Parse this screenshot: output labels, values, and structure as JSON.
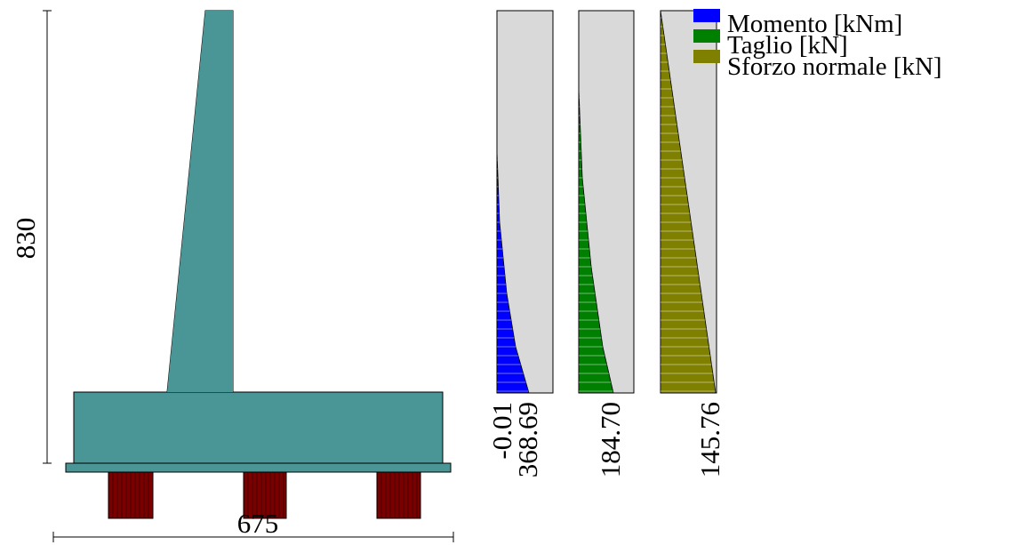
{
  "wall": {
    "height_label": "830",
    "width_label": "675"
  },
  "diagrams": [
    {
      "name": "moment",
      "top_label": "-0.01",
      "bottom_label": "368.69"
    },
    {
      "name": "shear",
      "bottom_label": "184.70"
    },
    {
      "name": "normal",
      "bottom_label": "145.76"
    }
  ],
  "legend": [
    "Momento [kNm]",
    "Taglio [kN]",
    "Sforzo normale [kN]"
  ]
}
